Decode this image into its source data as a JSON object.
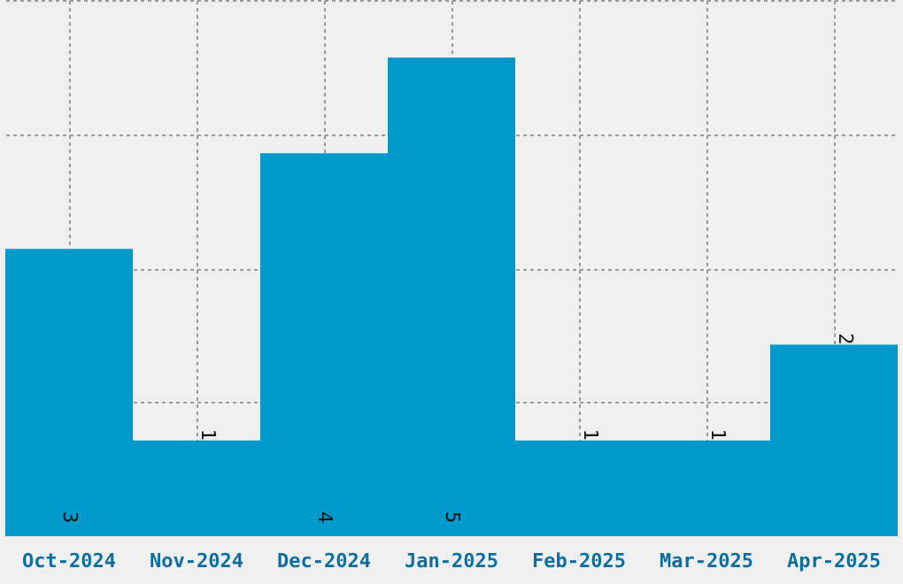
{
  "chart_data": {
    "type": "bar",
    "categories": [
      "Oct-2024",
      "Nov-2024",
      "Dec-2024",
      "Jan-2025",
      "Feb-2025",
      "Mar-2025",
      "Apr-2025"
    ],
    "values": [
      3,
      1,
      4,
      5,
      1,
      1,
      2
    ],
    "color": "#0099cc",
    "tick_labels": "x",
    "grid": true,
    "data_labels": true
  }
}
